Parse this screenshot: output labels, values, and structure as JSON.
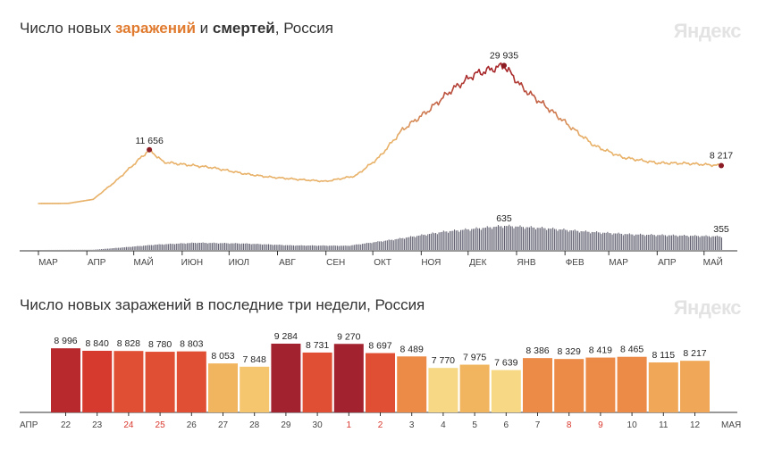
{
  "header1": {
    "prefix": "Число новых ",
    "infections_word": "заражений",
    "mid": " и ",
    "deaths_word": "смертей",
    "suffix": ", Россия"
  },
  "header2": {
    "title": "Число новых заражений в последние три недели, Россия"
  },
  "watermark": "Яндекс",
  "colors": {
    "infections_line_low": "#e8b26a",
    "infections_line_high": "#a8282b",
    "deaths_bars": "#5d5d6e",
    "axis": "#333333",
    "weekend_label": "#d9362b"
  },
  "chart_data": [
    {
      "type": "line",
      "title": "Число новых заражений и смертей, Россия",
      "series": [
        {
          "name": "заражений",
          "keypoints": [
            [
              "2020-03-01",
              0
            ],
            [
              "2020-03-20",
              30
            ],
            [
              "2020-04-05",
              900
            ],
            [
              "2020-04-20",
              5000
            ],
            [
              "2020-05-11",
              11656
            ],
            [
              "2020-05-20",
              9000
            ],
            [
              "2020-06-01",
              8500
            ],
            [
              "2020-06-20",
              7800
            ],
            [
              "2020-07-10",
              6500
            ],
            [
              "2020-07-25",
              5800
            ],
            [
              "2020-08-15",
              5200
            ],
            [
              "2020-09-01",
              4800
            ],
            [
              "2020-09-20",
              6000
            ],
            [
              "2020-10-05",
              10000
            ],
            [
              "2020-10-20",
              16000
            ],
            [
              "2020-11-05",
              20000
            ],
            [
              "2020-11-20",
              24500
            ],
            [
              "2020-12-05",
              28000
            ],
            [
              "2020-12-24",
              29935
            ],
            [
              "2021-01-05",
              25000
            ],
            [
              "2021-01-20",
              21000
            ],
            [
              "2021-02-05",
              16500
            ],
            [
              "2021-02-20",
              12500
            ],
            [
              "2021-03-10",
              10000
            ],
            [
              "2021-04-01",
              8800
            ],
            [
              "2021-04-20",
              8700
            ],
            [
              "2021-05-12",
              8217
            ]
          ],
          "labels": [
            {
              "x": "2020-05-11",
              "text": "11 656"
            },
            {
              "x": "2020-12-24",
              "text": "29 935"
            },
            {
              "x": "2021-05-12",
              "text": "8 217"
            }
          ]
        },
        {
          "name": "смертей",
          "keypoints": [
            [
              "2020-03-01",
              0
            ],
            [
              "2020-04-05",
              5
            ],
            [
              "2020-04-25",
              70
            ],
            [
              "2020-05-15",
              140
            ],
            [
              "2020-06-10",
              190
            ],
            [
              "2020-07-10",
              170
            ],
            [
              "2020-08-10",
              120
            ],
            [
              "2020-09-15",
              110
            ],
            [
              "2020-10-15",
              280
            ],
            [
              "2020-11-15",
              480
            ],
            [
              "2020-12-24",
              635
            ],
            [
              "2021-01-20",
              570
            ],
            [
              "2021-02-15",
              480
            ],
            [
              "2021-03-15",
              410
            ],
            [
              "2021-04-15",
              380
            ],
            [
              "2021-05-12",
              355
            ]
          ],
          "labels": [
            {
              "x": "2020-12-24",
              "text": "635"
            },
            {
              "x": "2021-05-12",
              "text": "355"
            }
          ]
        }
      ],
      "x_ticks": [
        "МАР",
        "АПР",
        "МАЙ",
        "ИЮН",
        "ИЮЛ",
        "АВГ",
        "СЕН",
        "ОКТ",
        "НОЯ",
        "ДЕК",
        "ЯНВ",
        "ФЕВ",
        "МАР",
        "АПР",
        "МАЙ"
      ],
      "xlim": [
        "2020-03-01",
        "2021-05-12"
      ],
      "ylim": [
        0,
        30000
      ]
    },
    {
      "type": "bar",
      "title": "Число новых заражений в последние три недели, Россия",
      "month_left": "АПР",
      "month_right": "МАЯ",
      "categories": [
        "22",
        "23",
        "24",
        "25",
        "26",
        "27",
        "28",
        "29",
        "30",
        "1",
        "2",
        "3",
        "4",
        "5",
        "6",
        "7",
        "8",
        "9",
        "10",
        "11",
        "12"
      ],
      "weekend": [
        false,
        false,
        true,
        true,
        false,
        false,
        false,
        false,
        false,
        true,
        true,
        false,
        false,
        false,
        false,
        false,
        true,
        true,
        false,
        false,
        false
      ],
      "values": [
        8996,
        8840,
        8828,
        8780,
        8803,
        8053,
        7848,
        9284,
        8731,
        9270,
        8697,
        8489,
        7770,
        7975,
        7639,
        8386,
        8329,
        8419,
        8465,
        8115,
        8217
      ],
      "value_labels": [
        "8 996",
        "8 840",
        "8 828",
        "8 780",
        "8 803",
        "8 053",
        "7 848",
        "9 284",
        "8 731",
        "9 270",
        "8 697",
        "8 489",
        "7 770",
        "7 975",
        "7 639",
        "8 386",
        "8 329",
        "8 419",
        "8 465",
        "8 115",
        "8 217"
      ],
      "bar_colors": [
        "#b8292e",
        "#d6392e",
        "#e04f33",
        "#e04f33",
        "#e04f33",
        "#f2b55f",
        "#f5c66e",
        "#a3222f",
        "#e04f33",
        "#a3222f",
        "#e04f33",
        "#ec8a48",
        "#f7d985",
        "#f2b55f",
        "#f7d985",
        "#ec8a48",
        "#ec8a48",
        "#ec8a48",
        "#ec8a48",
        "#f0a858",
        "#f0a858"
      ]
    }
  ]
}
